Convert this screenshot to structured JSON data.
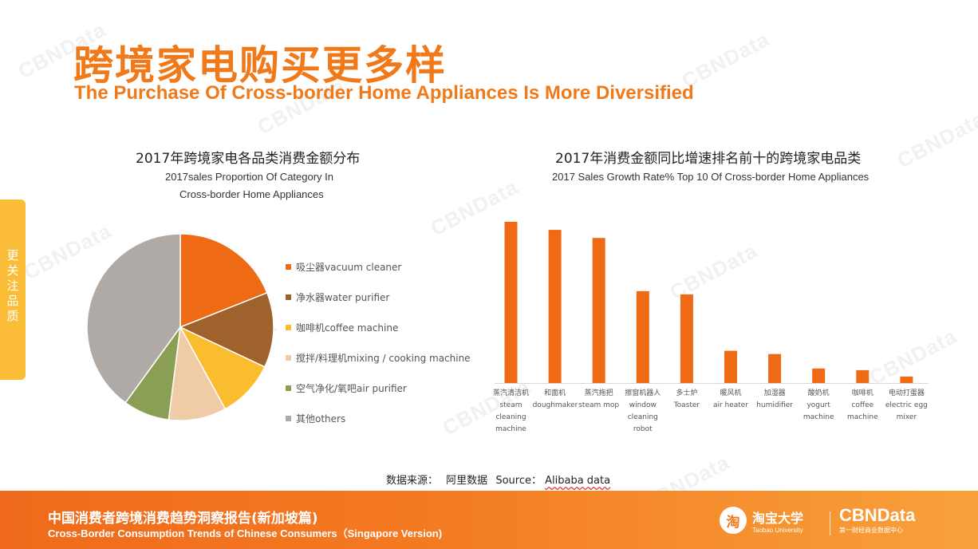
{
  "header": {
    "title_cn": "跨境家电购买更多样",
    "title_en": "The Purchase Of Cross-border Home Appliances Is More Diversified"
  },
  "side_tab": {
    "label": "更关注品质"
  },
  "watermark": {
    "text": "CBNData"
  },
  "pie_chart": {
    "title_cn": "2017年跨境家电各品类消费金额分布",
    "subtitle_line1": "2017sales Proportion Of Category In",
    "subtitle_line2": "Cross-border Home Appliances"
  },
  "bar_chart": {
    "title_cn": "2017年消费金额同比增速排名前十的跨境家电品类",
    "subtitle": "2017 Sales Growth Rate% Top 10 Of Cross-border Home Appliances"
  },
  "chart_data": [
    {
      "type": "pie",
      "title": "2017年跨境家电各品类消费金额分布",
      "subtitle": "2017sales Proportion Of Category In Cross-border Home Appliances",
      "categories": [
        "吸尘器vacuum cleaner",
        "净水器water purifier",
        "咖啡机coffee machine",
        "搅拌/料理机mixing / cooking machine",
        "空气净化/氧吧air purifier",
        "其他others"
      ],
      "values": [
        19,
        13,
        10,
        10,
        8,
        40
      ],
      "colors": [
        "#ef6a14",
        "#a0622c",
        "#fbbd30",
        "#efcba6",
        "#8a9e55",
        "#b0aaa6"
      ],
      "legend_position": "right"
    },
    {
      "type": "bar",
      "title": "2017年消费金额同比增速排名前十的跨境家电品类",
      "subtitle": "2017 Sales Growth Rate% Top 10 Of Cross-border Home Appliances",
      "categories": [
        {
          "cn": "蒸汽清洁机",
          "en": "steam cleaning machine"
        },
        {
          "cn": "和面机",
          "en": "doughmaker"
        },
        {
          "cn": "蒸汽拖把",
          "en": "steam mop"
        },
        {
          "cn": "擦窗机器人",
          "en": "window cleaning robot"
        },
        {
          "cn": "多士炉",
          "en": "Toaster"
        },
        {
          "cn": "暖风机",
          "en": "air heater"
        },
        {
          "cn": "加湿器",
          "en": "humidifier"
        },
        {
          "cn": "酸奶机",
          "en": "yogurt machine"
        },
        {
          "cn": "咖啡机",
          "en": "coffee machine"
        },
        {
          "cn": "电动打蛋器",
          "en": "electric egg mixer"
        }
      ],
      "values": [
        100,
        95,
        90,
        57,
        55,
        20,
        18,
        9,
        8,
        4
      ],
      "color": "#ef6a14",
      "ylim": [
        0,
        100
      ],
      "grid": false
    }
  ],
  "source": {
    "label": "数据来源：",
    "name_cn": "阿里数据",
    "source_label": "Source：",
    "name_en": "Alibaba data"
  },
  "footer": {
    "title_cn": "中国消费者跨境消费趋势洞察报告(新加坡篇)",
    "title_en": "Cross-Border Consumption Trends of Chinese Consumers（Singapore Version)",
    "taobao_badge": "淘",
    "taobao_cn": "淘宝大学",
    "taobao_en": "Taobao University",
    "cbn_name": "CBNData",
    "cbn_tagline": "第一财经商业数据中心"
  }
}
